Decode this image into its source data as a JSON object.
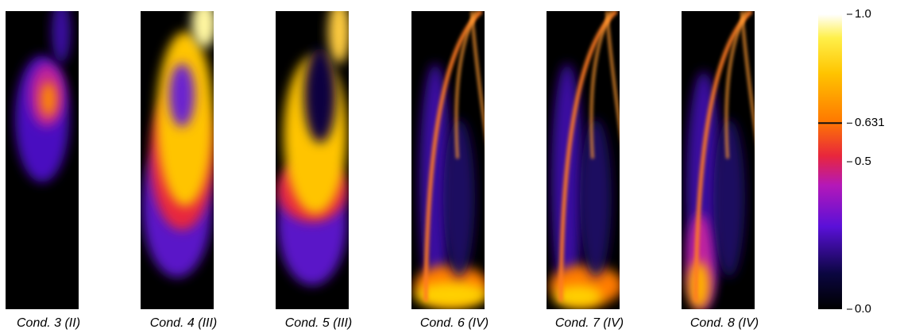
{
  "panels": [
    {
      "label": "Cond. 3 (II)"
    },
    {
      "label": "Cond. 4 (III)"
    },
    {
      "label": "Cond. 5 (III)"
    },
    {
      "label": "Cond. 6 (IV)"
    },
    {
      "label": "Cond. 7 (IV)"
    },
    {
      "label": "Cond. 8 (IV)"
    }
  ],
  "colorbar": {
    "lim": [
      0,
      1
    ],
    "ticks": [
      {
        "value": 0,
        "label": "0.0"
      },
      0.5,
      0.631,
      {
        "value": 1,
        "label": "1.0"
      }
    ],
    "contour_level": 0.631
  }
}
